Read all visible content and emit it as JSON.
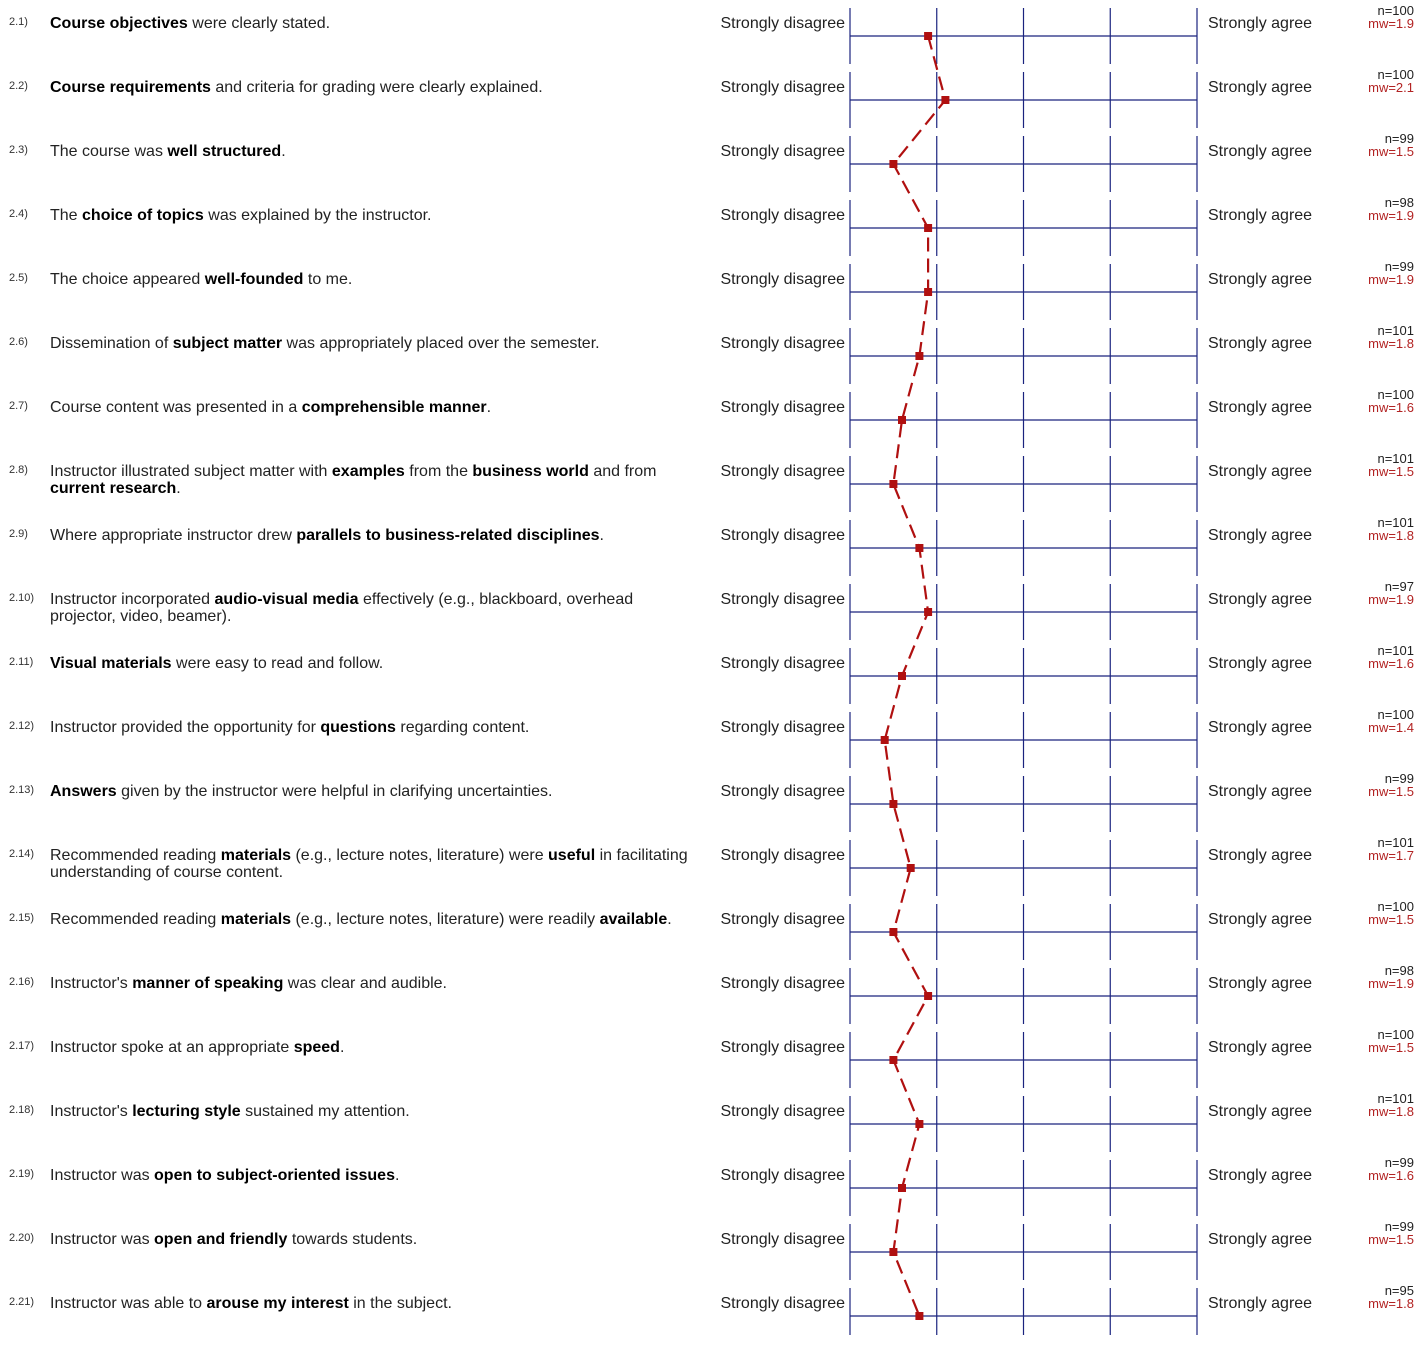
{
  "scale": {
    "left_label": "Strongly disagree",
    "right_label": "Strongly agree",
    "min": 1,
    "max": 5,
    "line_color": "#1a237e",
    "profile_color": "#b01010"
  },
  "chart_data": {
    "type": "line",
    "title": "",
    "xlabel": "",
    "ylabel": "",
    "xlim": [
      1,
      5
    ],
    "categories": [
      "2.1)",
      "2.2)",
      "2.3)",
      "2.4)",
      "2.5)",
      "2.6)",
      "2.7)",
      "2.8)",
      "2.9)",
      "2.10)",
      "2.11)",
      "2.12)",
      "2.13)",
      "2.14)",
      "2.15)",
      "2.16)",
      "2.17)",
      "2.18)",
      "2.19)",
      "2.20)",
      "2.21)"
    ],
    "series": [
      {
        "values": [
          1.9,
          2.1,
          1.5,
          1.9,
          1.9,
          1.8,
          1.6,
          1.5,
          1.8,
          1.9,
          1.6,
          1.4,
          1.5,
          1.7,
          1.5,
          1.9,
          1.5,
          1.8,
          1.6,
          1.5,
          1.8
        ]
      }
    ]
  },
  "items": [
    {
      "num": "2.1)",
      "html": "<b>Course objectives</b> were clearly stated.",
      "n": "n=100",
      "mw": "mw=1.9"
    },
    {
      "num": "2.2)",
      "html": "<b>Course requirements</b> and criteria for grading were clearly explained.",
      "n": "n=100",
      "mw": "mw=2.1"
    },
    {
      "num": "2.3)",
      "html": "The course was <b>well structured</b>.",
      "n": "n=99",
      "mw": "mw=1.5"
    },
    {
      "num": "2.4)",
      "html": "The <b>choice of topics</b> was explained by the instructor.",
      "n": "n=98",
      "mw": "mw=1.9"
    },
    {
      "num": "2.5)",
      "html": "The choice appeared <b>well-founded</b> to me.",
      "n": "n=99",
      "mw": "mw=1.9"
    },
    {
      "num": "2.6)",
      "html": "Dissemination of <b>subject matter</b> was appropriately placed over the semester.",
      "n": "n=101",
      "mw": "mw=1.8"
    },
    {
      "num": "2.7)",
      "html": "Course content was presented in a <b>comprehensible manner</b>.",
      "n": "n=100",
      "mw": "mw=1.6"
    },
    {
      "num": "2.8)",
      "html": "Instructor illustrated subject matter with <b>examples</b> from the <b>business world</b> and from <b>current research</b>.",
      "n": "n=101",
      "mw": "mw=1.5"
    },
    {
      "num": "2.9)",
      "html": "Where appropriate instructor drew <b>parallels to business-related disciplines</b>.",
      "n": "n=101",
      "mw": "mw=1.8"
    },
    {
      "num": "2.10)",
      "html": "Instructor incorporated <b>audio-visual media</b> effectively (e.g., blackboard, overhead projector, video, beamer).",
      "n": "n=97",
      "mw": "mw=1.9"
    },
    {
      "num": "2.11)",
      "html": "<b>Visual materials</b> were easy to read and follow.",
      "n": "n=101",
      "mw": "mw=1.6"
    },
    {
      "num": "2.12)",
      "html": "Instructor provided the opportunity for <b>questions</b> regarding content.",
      "n": "n=100",
      "mw": "mw=1.4"
    },
    {
      "num": "2.13)",
      "html": "<b>Answers</b> given by the instructor were helpful in clarifying uncertainties.",
      "n": "n=99",
      "mw": "mw=1.5"
    },
    {
      "num": "2.14)",
      "html": "Recommended reading <b>materials</b> (e.g., lecture notes, literature) were <b>useful</b> in facilitating understanding of course content.",
      "n": "n=101",
      "mw": "mw=1.7"
    },
    {
      "num": "2.15)",
      "html": "Recommended reading <b>materials</b> (e.g., lecture notes, literature) were readily <b>available</b>.",
      "n": "n=100",
      "mw": "mw=1.5"
    },
    {
      "num": "2.16)",
      "html": "Instructor's <b>manner of speaking</b> was clear and audible.",
      "n": "n=98",
      "mw": "mw=1.9"
    },
    {
      "num": "2.17)",
      "html": "Instructor spoke at an appropriate <b>speed</b>.",
      "n": "n=100",
      "mw": "mw=1.5"
    },
    {
      "num": "2.18)",
      "html": "Instructor's <b>lecturing style</b> sustained my attention.",
      "n": "n=101",
      "mw": "mw=1.8"
    },
    {
      "num": "2.19)",
      "html": "Instructor was <b>open to subject-oriented issues</b>.",
      "n": "n=99",
      "mw": "mw=1.6"
    },
    {
      "num": "2.20)",
      "html": "Instructor was <b>open and friendly</b> towards students.",
      "n": "n=99",
      "mw": "mw=1.5"
    },
    {
      "num": "2.21)",
      "html": "Instructor was able to <b>arouse my interest</b> in the subject.",
      "n": "n=95",
      "mw": "mw=1.8"
    }
  ]
}
